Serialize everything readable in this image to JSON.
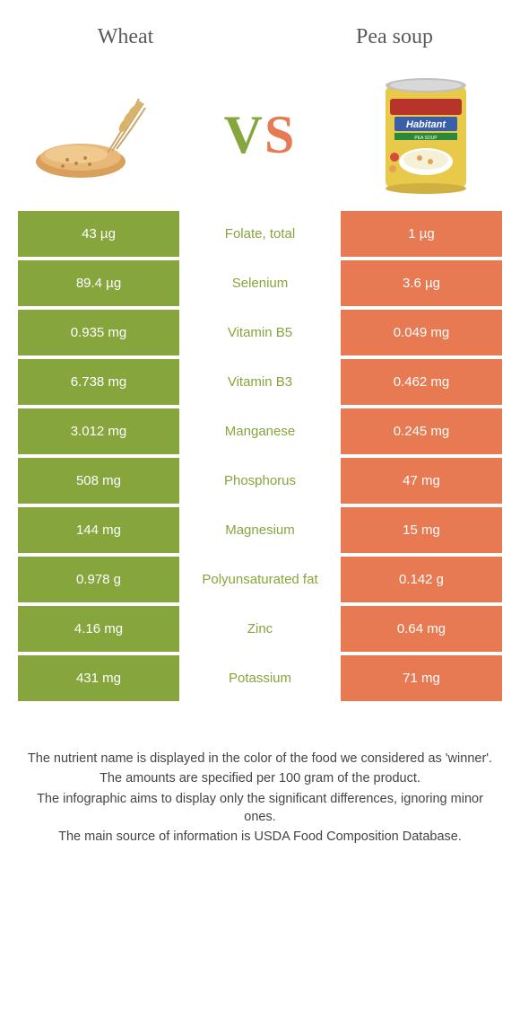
{
  "colors": {
    "green": "#86a53c",
    "orange": "#e77a52",
    "mid_text_green": "#86a53c",
    "title_text": "#5a5a5a",
    "body_text": "#444444"
  },
  "foods": {
    "left": "Wheat",
    "right": "Pea soup"
  },
  "vs": {
    "v": "V",
    "s": "S"
  },
  "rows": [
    {
      "left": "43 µg",
      "nutrient": "Folate, total",
      "right": "1 µg",
      "winner": "left"
    },
    {
      "left": "89.4 µg",
      "nutrient": "Selenium",
      "right": "3.6 µg",
      "winner": "left"
    },
    {
      "left": "0.935 mg",
      "nutrient": "Vitamin B5",
      "right": "0.049 mg",
      "winner": "left"
    },
    {
      "left": "6.738 mg",
      "nutrient": "Vitamin B3",
      "right": "0.462 mg",
      "winner": "left"
    },
    {
      "left": "3.012 mg",
      "nutrient": "Manganese",
      "right": "0.245 mg",
      "winner": "left"
    },
    {
      "left": "508 mg",
      "nutrient": "Phosphorus",
      "right": "47 mg",
      "winner": "left"
    },
    {
      "left": "144 mg",
      "nutrient": "Magnesium",
      "right": "15 mg",
      "winner": "left"
    },
    {
      "left": "0.978 g",
      "nutrient": "Polyunsaturated fat",
      "right": "0.142 g",
      "winner": "left"
    },
    {
      "left": "4.16 mg",
      "nutrient": "Zinc",
      "right": "0.64 mg",
      "winner": "left"
    },
    {
      "left": "431 mg",
      "nutrient": "Potassium",
      "right": "71 mg",
      "winner": "left"
    }
  ],
  "footer": {
    "line1": "The nutrient name is displayed in the color of the food we considered as 'winner'.",
    "line2": "The amounts are specified per 100 gram of the product.",
    "line3": "The infographic aims to display only the significant differences, ignoring minor ones.",
    "line4": "The main source of information is USDA Food Composition Database."
  }
}
